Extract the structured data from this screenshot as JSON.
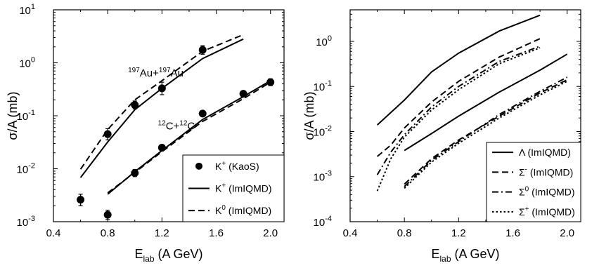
{
  "chart_data": [
    {
      "type": "line",
      "panel": "left",
      "xlabel": {
        "main": "E",
        "sub": "lab",
        "rest": " (A GeV)"
      },
      "ylabel": {
        "sigma": "σ",
        "rest": "/A (mb)"
      },
      "xlim": [
        0.4,
        2.1
      ],
      "ylim_log10": [
        -3,
        1
      ],
      "yscale": "log",
      "xticks": [
        0.4,
        0.8,
        1.2,
        1.6,
        2.0
      ],
      "xtick_labels": [
        "0.4",
        "0.8",
        "1.2",
        "1.6",
        "2.0"
      ],
      "yticks": [
        {
          "exp": -3,
          "base": "10",
          "sup": "-3"
        },
        {
          "exp": -2,
          "base": "10",
          "sup": "-2"
        },
        {
          "exp": -1,
          "base": "10",
          "sup": "-1"
        },
        {
          "exp": 0,
          "base": "10",
          "sup": "0"
        },
        {
          "exp": 1,
          "base": "10",
          "sup": "1"
        }
      ],
      "annotations": [
        {
          "parts": [
            {
              "sup": "197"
            },
            {
              "t": "Au+"
            },
            {
              "sup": "197"
            },
            {
              "t": "Au"
            }
          ],
          "x": 0.95,
          "y": 0.55
        },
        {
          "parts": [
            {
              "sup": "12"
            },
            {
              "t": "C+"
            },
            {
              "sup": "12"
            },
            {
              "t": "C"
            }
          ],
          "x": 1.17,
          "y": 0.055
        }
      ],
      "legend": {
        "position": "bottom-right",
        "entries": [
          {
            "symbol": "dot",
            "name": "K",
            "sup": "+",
            "rest": " (KaoS)"
          },
          {
            "symbol": "solid",
            "name": "K",
            "sup": "+",
            "rest": " (ImIQMD)"
          },
          {
            "symbol": "dash",
            "name": "K",
            "sup": "0",
            "rest": " (ImIQMD)"
          }
        ]
      },
      "series": [
        {
          "style": "dot",
          "group": "Au+Au",
          "x": [
            0.6,
            0.8,
            1.0,
            1.2,
            1.5,
            2.0
          ],
          "y": [
            0.0026,
            0.045,
            0.16,
            0.33,
            1.75,
            0.43
          ],
          "err_low": [
            0.0006,
            0.01,
            0.025,
            0.08,
            0.3,
            0.06
          ],
          "err_high": [
            0.0007,
            0.012,
            0.03,
            0.1,
            0.35,
            0.07
          ]
        },
        {
          "style": "dot",
          "group": "C+C",
          "x": [
            0.8,
            1.0,
            1.2,
            1.5,
            1.8
          ],
          "y": [
            0.00135,
            0.0083,
            0.025,
            0.11,
            0.26
          ],
          "err_low": [
            0.00025,
            0.0012,
            0.003,
            0.012,
            0.03
          ],
          "err_high": [
            0.0003,
            0.0014,
            0.0035,
            0.014,
            0.035
          ]
        },
        {
          "style": "solid",
          "group": "Au+Au",
          "x": [
            0.6,
            0.8,
            1.0,
            1.2,
            1.5,
            1.8
          ],
          "y": [
            0.0068,
            0.032,
            0.13,
            0.33,
            1.2,
            2.8
          ]
        },
        {
          "style": "dash",
          "group": "Au+Au",
          "x": [
            0.6,
            0.8,
            1.0,
            1.2,
            1.5,
            1.8
          ],
          "y": [
            0.0098,
            0.055,
            0.2,
            0.46,
            1.65,
            3.4
          ]
        },
        {
          "style": "solid",
          "group": "C+C",
          "x": [
            0.8,
            1.0,
            1.2,
            1.5,
            1.8,
            2.0
          ],
          "y": [
            0.0033,
            0.0088,
            0.022,
            0.085,
            0.23,
            0.46
          ]
        },
        {
          "style": "dash",
          "group": "C+C",
          "x": [
            0.8,
            1.0,
            1.2,
            1.5,
            1.8,
            2.0
          ],
          "y": [
            0.0035,
            0.0085,
            0.021,
            0.078,
            0.21,
            0.43
          ]
        }
      ]
    },
    {
      "type": "line",
      "panel": "right",
      "xlabel": {
        "main": "E",
        "sub": "lab",
        "rest": " (A GeV)"
      },
      "ylabel": {
        "sigma": "σ",
        "rest": "/A (mb)"
      },
      "xlim": [
        0.4,
        2.1
      ],
      "ylim_log10": [
        -4,
        0.7
      ],
      "yscale": "log",
      "xticks": [
        0.4,
        0.8,
        1.2,
        1.6,
        2.0
      ],
      "xtick_labels": [
        "0.4",
        "0.8",
        "1.2",
        "1.6",
        "2.0"
      ],
      "yticks": [
        {
          "exp": -4,
          "base": "10",
          "sup": "-4"
        },
        {
          "exp": -3,
          "base": "10",
          "sup": "-3"
        },
        {
          "exp": -2,
          "base": "10",
          "sup": "-2"
        },
        {
          "exp": -1,
          "base": "10",
          "sup": "-1"
        },
        {
          "exp": 0,
          "base": "10",
          "sup": "0"
        }
      ],
      "legend": {
        "position": "bottom-right",
        "entries": [
          {
            "symbol": "solid",
            "name": "Λ",
            "sup": "",
            "rest": " (ImIQMD)"
          },
          {
            "symbol": "dash",
            "name": "Σ",
            "sup": "-",
            "rest": " (ImIQMD)"
          },
          {
            "symbol": "dashdot",
            "name": "Σ",
            "sup": "0",
            "rest": " (ImIQMD)"
          },
          {
            "symbol": "dot",
            "name": "Σ",
            "sup": "+",
            "rest": " (ImIQMD)"
          }
        ]
      },
      "series": [
        {
          "style": "solid",
          "group": "Au+Au",
          "x": [
            0.6,
            0.8,
            1.0,
            1.2,
            1.5,
            1.8
          ],
          "y": [
            0.014,
            0.05,
            0.21,
            0.55,
            1.7,
            3.8
          ]
        },
        {
          "style": "dash",
          "group": "Au+Au",
          "x": [
            0.6,
            0.7,
            0.8,
            1.0,
            1.2,
            1.5,
            1.8
          ],
          "y": [
            0.0028,
            0.005,
            0.012,
            0.045,
            0.13,
            0.45,
            1.15
          ]
        },
        {
          "style": "dashdot",
          "group": "Au+Au",
          "x": [
            0.6,
            0.7,
            0.8,
            1.0,
            1.2,
            1.5,
            1.8
          ],
          "y": [
            0.0011,
            0.0035,
            0.0085,
            0.035,
            0.1,
            0.36,
            0.78
          ]
        },
        {
          "style": "dot",
          "group": "Au+Au",
          "x": [
            0.6,
            0.7,
            0.8,
            1.0,
            1.2,
            1.5,
            1.8
          ],
          "y": [
            0.00048,
            0.0025,
            0.0075,
            0.03,
            0.085,
            0.32,
            0.72
          ]
        },
        {
          "style": "solid",
          "group": "C+C",
          "x": [
            0.8,
            1.0,
            1.2,
            1.5,
            1.8,
            2.0
          ],
          "y": [
            0.0038,
            0.009,
            0.022,
            0.075,
            0.23,
            0.52
          ]
        },
        {
          "style": "dash",
          "group": "C+C",
          "x": [
            0.8,
            1.0,
            1.2,
            1.5,
            1.8,
            2.0
          ],
          "y": [
            0.00068,
            0.0025,
            0.0065,
            0.022,
            0.072,
            0.14
          ]
        },
        {
          "style": "dashdot",
          "group": "C+C",
          "x": [
            0.8,
            1.0,
            1.2,
            1.5,
            1.8,
            2.0
          ],
          "y": [
            0.0006,
            0.0023,
            0.006,
            0.024,
            0.078,
            0.16
          ]
        },
        {
          "style": "dot",
          "group": "C+C",
          "x": [
            0.8,
            1.0,
            1.2,
            1.5,
            1.8,
            2.0
          ],
          "y": [
            0.00055,
            0.0021,
            0.0055,
            0.02,
            0.065,
            0.13
          ]
        }
      ]
    }
  ]
}
